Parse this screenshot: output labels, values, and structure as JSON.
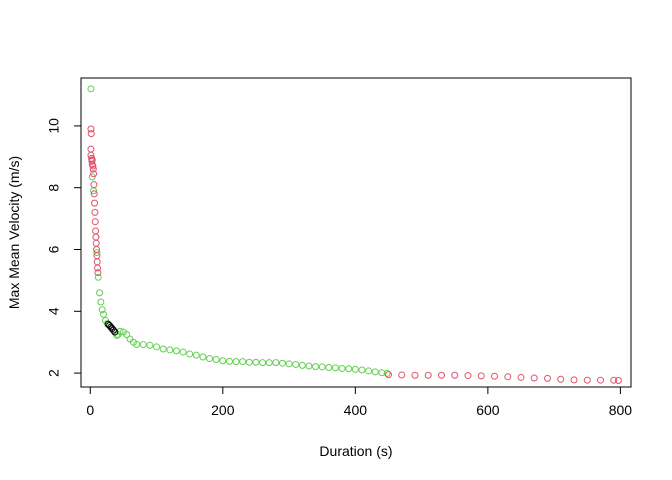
{
  "chart_data": {
    "type": "scatter",
    "title": "",
    "xlabel": "Duration (s)",
    "ylabel": "Max Mean Velocity (m/s)",
    "xlim": [
      -14,
      816
    ],
    "ylim": [
      1.55,
      11.55
    ],
    "xticks": [
      0,
      200,
      400,
      600,
      800
    ],
    "yticks": [
      2,
      4,
      6,
      8,
      10
    ],
    "grid": false,
    "legend": "none",
    "marker": "open-circle",
    "colors": {
      "green": "#61d04f",
      "red": "#df536b",
      "black": "#000000"
    },
    "series": [
      {
        "color": "#61d04f",
        "points": [
          [
            1,
            11.2
          ],
          [
            3,
            8.35
          ],
          [
            5,
            7.9
          ],
          [
            10,
            5.9
          ],
          [
            12,
            5.1
          ],
          [
            14,
            4.6
          ],
          [
            16,
            4.3
          ],
          [
            18,
            4.05
          ],
          [
            20,
            3.9
          ],
          [
            23,
            3.7
          ],
          [
            26,
            3.6
          ],
          [
            40,
            3.22
          ],
          [
            42,
            3.25
          ],
          [
            45,
            3.35
          ],
          [
            50,
            3.33
          ],
          [
            55,
            3.25
          ],
          [
            60,
            3.1
          ],
          [
            65,
            3.0
          ],
          [
            70,
            2.93
          ],
          [
            80,
            2.92
          ],
          [
            90,
            2.9
          ],
          [
            100,
            2.85
          ],
          [
            110,
            2.78
          ],
          [
            120,
            2.75
          ],
          [
            130,
            2.72
          ],
          [
            140,
            2.68
          ],
          [
            150,
            2.62
          ],
          [
            160,
            2.58
          ],
          [
            170,
            2.52
          ],
          [
            180,
            2.47
          ],
          [
            190,
            2.44
          ],
          [
            200,
            2.4
          ],
          [
            210,
            2.38
          ],
          [
            220,
            2.37
          ],
          [
            230,
            2.37
          ],
          [
            240,
            2.35
          ],
          [
            250,
            2.35
          ],
          [
            260,
            2.34
          ],
          [
            270,
            2.34
          ],
          [
            280,
            2.34
          ],
          [
            290,
            2.32
          ],
          [
            300,
            2.3
          ],
          [
            310,
            2.28
          ],
          [
            320,
            2.25
          ],
          [
            330,
            2.23
          ],
          [
            340,
            2.21
          ],
          [
            350,
            2.2
          ],
          [
            360,
            2.18
          ],
          [
            370,
            2.17
          ],
          [
            380,
            2.15
          ],
          [
            390,
            2.14
          ],
          [
            400,
            2.12
          ],
          [
            410,
            2.1
          ],
          [
            420,
            2.07
          ],
          [
            430,
            2.04
          ],
          [
            440,
            2.01
          ],
          [
            448,
            1.99
          ]
        ]
      },
      {
        "color": "#df536b",
        "points": [
          [
            1,
            9.9
          ],
          [
            1.5,
            9.75
          ],
          [
            1,
            9.25
          ],
          [
            1,
            9.05
          ],
          [
            2,
            8.95
          ],
          [
            3,
            8.9
          ],
          [
            2.5,
            8.85
          ],
          [
            3,
            8.75
          ],
          [
            4,
            8.7
          ],
          [
            4.5,
            8.6
          ],
          [
            5,
            8.45
          ],
          [
            5.5,
            8.1
          ],
          [
            6,
            7.8
          ],
          [
            6.5,
            7.5
          ],
          [
            7,
            7.2
          ],
          [
            7.5,
            6.9
          ],
          [
            8,
            6.6
          ],
          [
            8.5,
            6.4
          ],
          [
            9,
            6.2
          ],
          [
            9.5,
            6.0
          ],
          [
            10,
            5.8
          ],
          [
            10.5,
            5.6
          ],
          [
            11,
            5.4
          ],
          [
            11.5,
            5.25
          ],
          [
            450,
            1.95
          ],
          [
            470,
            1.94
          ],
          [
            490,
            1.93
          ],
          [
            510,
            1.93
          ],
          [
            530,
            1.93
          ],
          [
            550,
            1.93
          ],
          [
            570,
            1.92
          ],
          [
            590,
            1.91
          ],
          [
            610,
            1.9
          ],
          [
            630,
            1.88
          ],
          [
            650,
            1.86
          ],
          [
            670,
            1.84
          ],
          [
            690,
            1.83
          ],
          [
            710,
            1.8
          ],
          [
            730,
            1.78
          ],
          [
            750,
            1.77
          ],
          [
            770,
            1.77
          ],
          [
            790,
            1.77
          ],
          [
            797,
            1.76
          ]
        ]
      },
      {
        "color": "#000000",
        "points": [
          [
            27,
            3.58
          ],
          [
            29,
            3.54
          ],
          [
            31,
            3.49
          ],
          [
            33,
            3.44
          ],
          [
            35,
            3.39
          ],
          [
            37,
            3.33
          ]
        ]
      }
    ]
  }
}
